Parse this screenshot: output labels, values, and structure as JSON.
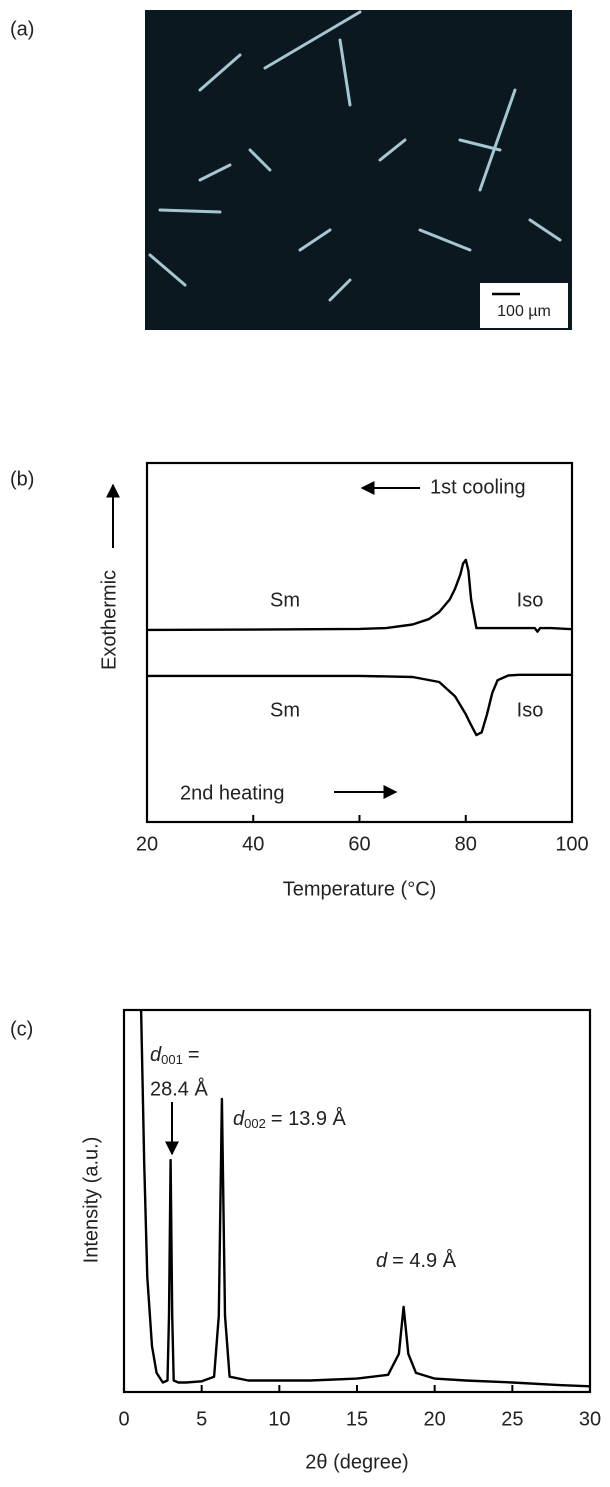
{
  "image_panel": {
    "label": "(a)",
    "scale_bar": "100 µm"
  },
  "chart_data": [
    {
      "type": "line",
      "label": "(b)",
      "xlabel": "Temperature (°C)",
      "ylabel": "Exothermic",
      "xlim": [
        20,
        100
      ],
      "xticks": [
        20,
        40,
        60,
        80,
        100
      ],
      "ylim": [
        0,
        100
      ],
      "annotations": {
        "cooling": "1st cooling",
        "heating": "2nd heating",
        "sm_top": "Sm",
        "iso_top": "Iso",
        "sm_bottom": "Sm",
        "iso_bottom": "Iso"
      },
      "series": [
        {
          "color": "#000000",
          "x": [
            20,
            40,
            60,
            65,
            70,
            73,
            75,
            77,
            78,
            79,
            79.5,
            80,
            80.5,
            81,
            82,
            85,
            90,
            92,
            93,
            93.5,
            94,
            96,
            100
          ],
          "values": [
            53.5,
            53.6,
            53.8,
            54,
            55,
            56.5,
            58.5,
            62,
            65,
            69,
            72,
            73,
            70,
            62,
            54,
            54,
            54,
            54,
            54,
            53,
            54,
            54,
            53.7
          ]
        },
        {
          "color": "#000000",
          "x": [
            20,
            60,
            70,
            75,
            78,
            80,
            81,
            82,
            83,
            84,
            85,
            86,
            88,
            90,
            100
          ],
          "values": [
            40.7,
            40.7,
            40.4,
            39,
            35,
            30,
            27,
            24.2,
            25,
            30,
            36,
            39.5,
            40.8,
            41,
            41
          ]
        }
      ]
    },
    {
      "type": "line",
      "label": "(c)",
      "xlabel": "2θ (degree)",
      "ylabel": "Intensity (a.u.)",
      "xlim": [
        0,
        30
      ],
      "xticks": [
        0,
        5,
        10,
        15,
        20,
        25,
        30
      ],
      "ylim": [
        0,
        100
      ],
      "annotations": {
        "d001": {
          "symbol": "d",
          "subscript": "001",
          "equals": "=",
          "value": "28.4 Å"
        },
        "d002": {
          "symbol": "d",
          "subscript": "002",
          "text": "= 13.9 Å"
        },
        "d": {
          "symbol": "d",
          "text": "= 4.9 Å"
        }
      },
      "series": [
        {
          "color": "#000000",
          "x": [
            1.1,
            1.3,
            1.5,
            1.8,
            2.1,
            2.5,
            2.8,
            2.9,
            3.0,
            3.1,
            3.2,
            3.5,
            4,
            5,
            5.8,
            6.1,
            6.3,
            6.5,
            6.8,
            8,
            10,
            12,
            15,
            17,
            17.7,
            18,
            18.3,
            18.8,
            20,
            22,
            25,
            28,
            30
          ],
          "values": [
            100,
            60,
            30,
            12,
            5,
            2.5,
            3,
            20,
            60.7,
            20,
            3,
            2.5,
            2.5,
            2.8,
            4,
            20,
            76.7,
            20,
            4,
            3,
            3,
            3,
            3.5,
            4.5,
            10,
            22.3,
            10,
            5,
            3.5,
            3,
            2.5,
            1.8,
            1.5
          ]
        }
      ]
    }
  ]
}
